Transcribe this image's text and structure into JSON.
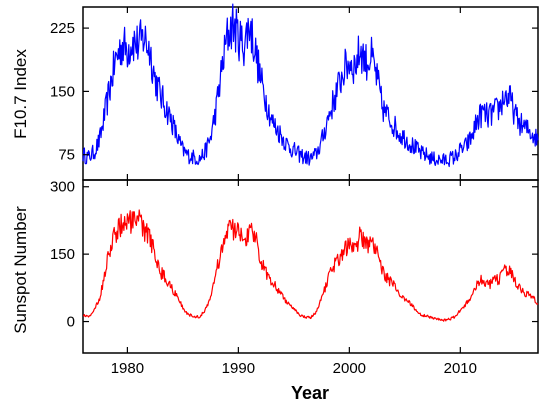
{
  "chart_data": [
    {
      "type": "line",
      "title": "",
      "xlabel": "",
      "ylabel": "F10.7 Index",
      "xlim": [
        1976,
        2017
      ],
      "ylim": [
        45,
        250
      ],
      "yticks": [
        75,
        150,
        225
      ],
      "color": "#0000ff",
      "grid": false,
      "series": [
        {
          "x": [
            1976.0,
            1976.5,
            1977.0,
            1977.5,
            1978.0,
            1978.5,
            1979.0,
            1979.5,
            1980.0,
            1980.5,
            1981.0,
            1981.5,
            1982.0,
            1982.5,
            1983.0,
            1983.5,
            1984.0,
            1984.5,
            1985.0,
            1985.5,
            1986.0,
            1986.5,
            1987.0,
            1987.5,
            1988.0,
            1988.5,
            1989.0,
            1989.5,
            1990.0,
            1990.5,
            1991.0,
            1991.5,
            1992.0,
            1992.5,
            1993.0,
            1993.5,
            1994.0,
            1994.5,
            1995.0,
            1995.5,
            1996.0,
            1996.5,
            1997.0,
            1997.5,
            1998.0,
            1998.5,
            1999.0,
            1999.5,
            2000.0,
            2000.5,
            2001.0,
            2001.5,
            2002.0,
            2002.5,
            2003.0,
            2003.5,
            2004.0,
            2004.5,
            2005.0,
            2005.5,
            2006.0,
            2006.5,
            2007.0,
            2007.5,
            2008.0,
            2008.5,
            2009.0,
            2009.5,
            2010.0,
            2010.5,
            2011.0,
            2011.5,
            2012.0,
            2012.5,
            2013.0,
            2013.5,
            2014.0,
            2014.5,
            2015.0,
            2015.5,
            2016.0,
            2016.5,
            2017.0
          ],
          "y": [
            75,
            72,
            78,
            92,
            125,
            160,
            190,
            205,
            200,
            210,
            205,
            215,
            200,
            165,
            145,
            130,
            115,
            95,
            80,
            74,
            72,
            70,
            78,
            95,
            130,
            175,
            215,
            230,
            215,
            205,
            230,
            200,
            165,
            140,
            115,
            105,
            95,
            85,
            80,
            75,
            72,
            70,
            75,
            90,
            115,
            135,
            155,
            175,
            185,
            180,
            200,
            185,
            190,
            165,
            130,
            120,
            110,
            100,
            95,
            88,
            82,
            76,
            74,
            70,
            69,
            68,
            70,
            72,
            80,
            85,
            95,
            115,
            125,
            120,
            125,
            130,
            145,
            140,
            120,
            110,
            105,
            100,
            92
          ]
        }
      ]
    },
    {
      "type": "line",
      "title": "",
      "xlabel": "Year",
      "ylabel": "Sunspot Number",
      "xlim": [
        1976,
        2017
      ],
      "ylim": [
        -70,
        315
      ],
      "yticks": [
        0,
        150,
        300
      ],
      "xticks": [
        1980,
        1990,
        2000,
        2010
      ],
      "color": "#ff0000",
      "grid": false,
      "series": [
        {
          "x": [
            1976.0,
            1976.5,
            1977.0,
            1977.5,
            1978.0,
            1978.5,
            1979.0,
            1979.5,
            1980.0,
            1980.5,
            1981.0,
            1981.5,
            1982.0,
            1982.5,
            1983.0,
            1983.5,
            1984.0,
            1984.5,
            1985.0,
            1985.5,
            1986.0,
            1986.5,
            1987.0,
            1987.5,
            1988.0,
            1988.5,
            1989.0,
            1989.5,
            1990.0,
            1990.5,
            1991.0,
            1991.5,
            1992.0,
            1992.5,
            1993.0,
            1993.5,
            1994.0,
            1994.5,
            1995.0,
            1995.5,
            1996.0,
            1996.5,
            1997.0,
            1997.5,
            1998.0,
            1998.5,
            1999.0,
            1999.5,
            2000.0,
            2000.5,
            2001.0,
            2001.5,
            2002.0,
            2002.5,
            2003.0,
            2003.5,
            2004.0,
            2004.5,
            2005.0,
            2005.5,
            2006.0,
            2006.5,
            2007.0,
            2007.5,
            2008.0,
            2008.5,
            2009.0,
            2009.5,
            2010.0,
            2010.5,
            2011.0,
            2011.5,
            2012.0,
            2012.5,
            2013.0,
            2013.5,
            2014.0,
            2014.5,
            2015.0,
            2015.5,
            2016.0,
            2016.5,
            2017.0
          ],
          "y": [
            15,
            10,
            25,
            50,
            110,
            170,
            200,
            220,
            225,
            215,
            230,
            200,
            190,
            150,
            110,
            95,
            75,
            55,
            30,
            15,
            12,
            10,
            25,
            55,
            110,
            160,
            200,
            210,
            195,
            185,
            200,
            190,
            140,
            110,
            90,
            75,
            55,
            40,
            30,
            15,
            10,
            8,
            20,
            50,
            90,
            120,
            140,
            160,
            175,
            165,
            190,
            170,
            175,
            150,
            110,
            95,
            80,
            60,
            50,
            40,
            25,
            15,
            12,
            8,
            5,
            3,
            5,
            10,
            25,
            40,
            55,
            85,
            95,
            80,
            90,
            95,
            120,
            110,
            85,
            70,
            60,
            55,
            40
          ]
        }
      ]
    }
  ]
}
